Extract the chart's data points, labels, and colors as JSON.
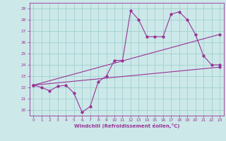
{
  "title": "",
  "xlabel": "Windchill (Refroidissement éolien,°C)",
  "xlim": [
    -0.5,
    23.5
  ],
  "ylim": [
    19.5,
    29.5
  ],
  "xticks": [
    0,
    1,
    2,
    3,
    4,
    5,
    6,
    7,
    8,
    9,
    10,
    11,
    12,
    13,
    14,
    15,
    16,
    17,
    18,
    19,
    20,
    21,
    22,
    23
  ],
  "yticks": [
    20,
    21,
    22,
    23,
    24,
    25,
    26,
    27,
    28,
    29
  ],
  "bg_color": "#cce8e8",
  "line_color": "#993399",
  "grid_color": "#99cccc",
  "line1_x": [
    0,
    1,
    2,
    3,
    4,
    5,
    6,
    7,
    8,
    9,
    10,
    11,
    12,
    13,
    14,
    15,
    16,
    17,
    18,
    19,
    20,
    21,
    22,
    23
  ],
  "line1_y": [
    22.2,
    22.0,
    21.7,
    22.1,
    22.2,
    21.5,
    19.8,
    20.3,
    22.5,
    23.0,
    24.4,
    24.4,
    28.8,
    28.0,
    26.5,
    26.5,
    26.5,
    28.5,
    28.7,
    28.0,
    26.7,
    24.8,
    24.0,
    24.0
  ],
  "line2_x": [
    0,
    23
  ],
  "line2_y": [
    22.2,
    26.7
  ],
  "line3_x": [
    0,
    23
  ],
  "line3_y": [
    22.2,
    23.8
  ]
}
